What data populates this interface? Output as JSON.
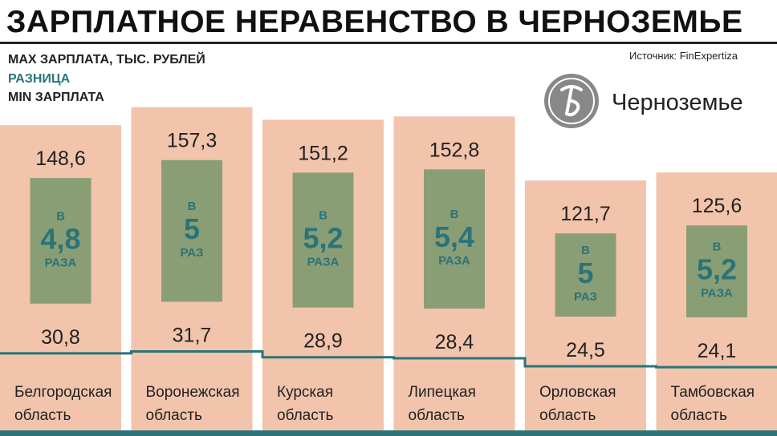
{
  "title": "ЗАРПЛАТНОЕ НЕРАВЕНСТВО В ЧЕРНОЗЕМЬЕ",
  "legend": {
    "max": "MAX ЗАРПЛАТА, ТЫС. РУБЛЕЙ",
    "diff": "РАЗНИЦА",
    "min": "MIN ЗАРПЛАТА"
  },
  "source": "Источник: FinExpertiza",
  "brand": "Черноземье",
  "colors": {
    "max_bar": "#f2c4ac",
    "diff_bar": "#8a9e75",
    "accent": "#2a7479",
    "text": "#222222"
  },
  "chart_data": {
    "type": "bar",
    "categories": [
      [
        "Белгородская",
        "область"
      ],
      [
        "Воронежская",
        "область"
      ],
      [
        "Курская",
        "область"
      ],
      [
        "Липецкая",
        "область"
      ],
      [
        "Орловская",
        "область"
      ],
      [
        "Тамбовская",
        "область"
      ]
    ],
    "series": [
      {
        "name": "MAX ЗАРПЛАТА, ТЫС. РУБЛЕЙ",
        "values": [
          148.6,
          157.3,
          151.2,
          152.8,
          121.7,
          125.6
        ],
        "labels": [
          "148,6",
          "157,3",
          "151,2",
          "152,8",
          "121,7",
          "125,6"
        ]
      },
      {
        "name": "MIN ЗАРПЛАТА",
        "values": [
          30.8,
          31.7,
          28.9,
          28.4,
          24.5,
          24.1
        ],
        "labels": [
          "30,8",
          "31,7",
          "28,9",
          "28,4",
          "24,5",
          "24,1"
        ]
      }
    ],
    "ratio": {
      "name": "РАЗНИЦА",
      "prefix": "В",
      "values": [
        "4,8",
        "5",
        "5,2",
        "5,4",
        "5",
        "5,2"
      ],
      "units": [
        "РАЗА",
        "РАЗ",
        "РАЗА",
        "РАЗА",
        "РАЗ",
        "РАЗА"
      ]
    }
  }
}
